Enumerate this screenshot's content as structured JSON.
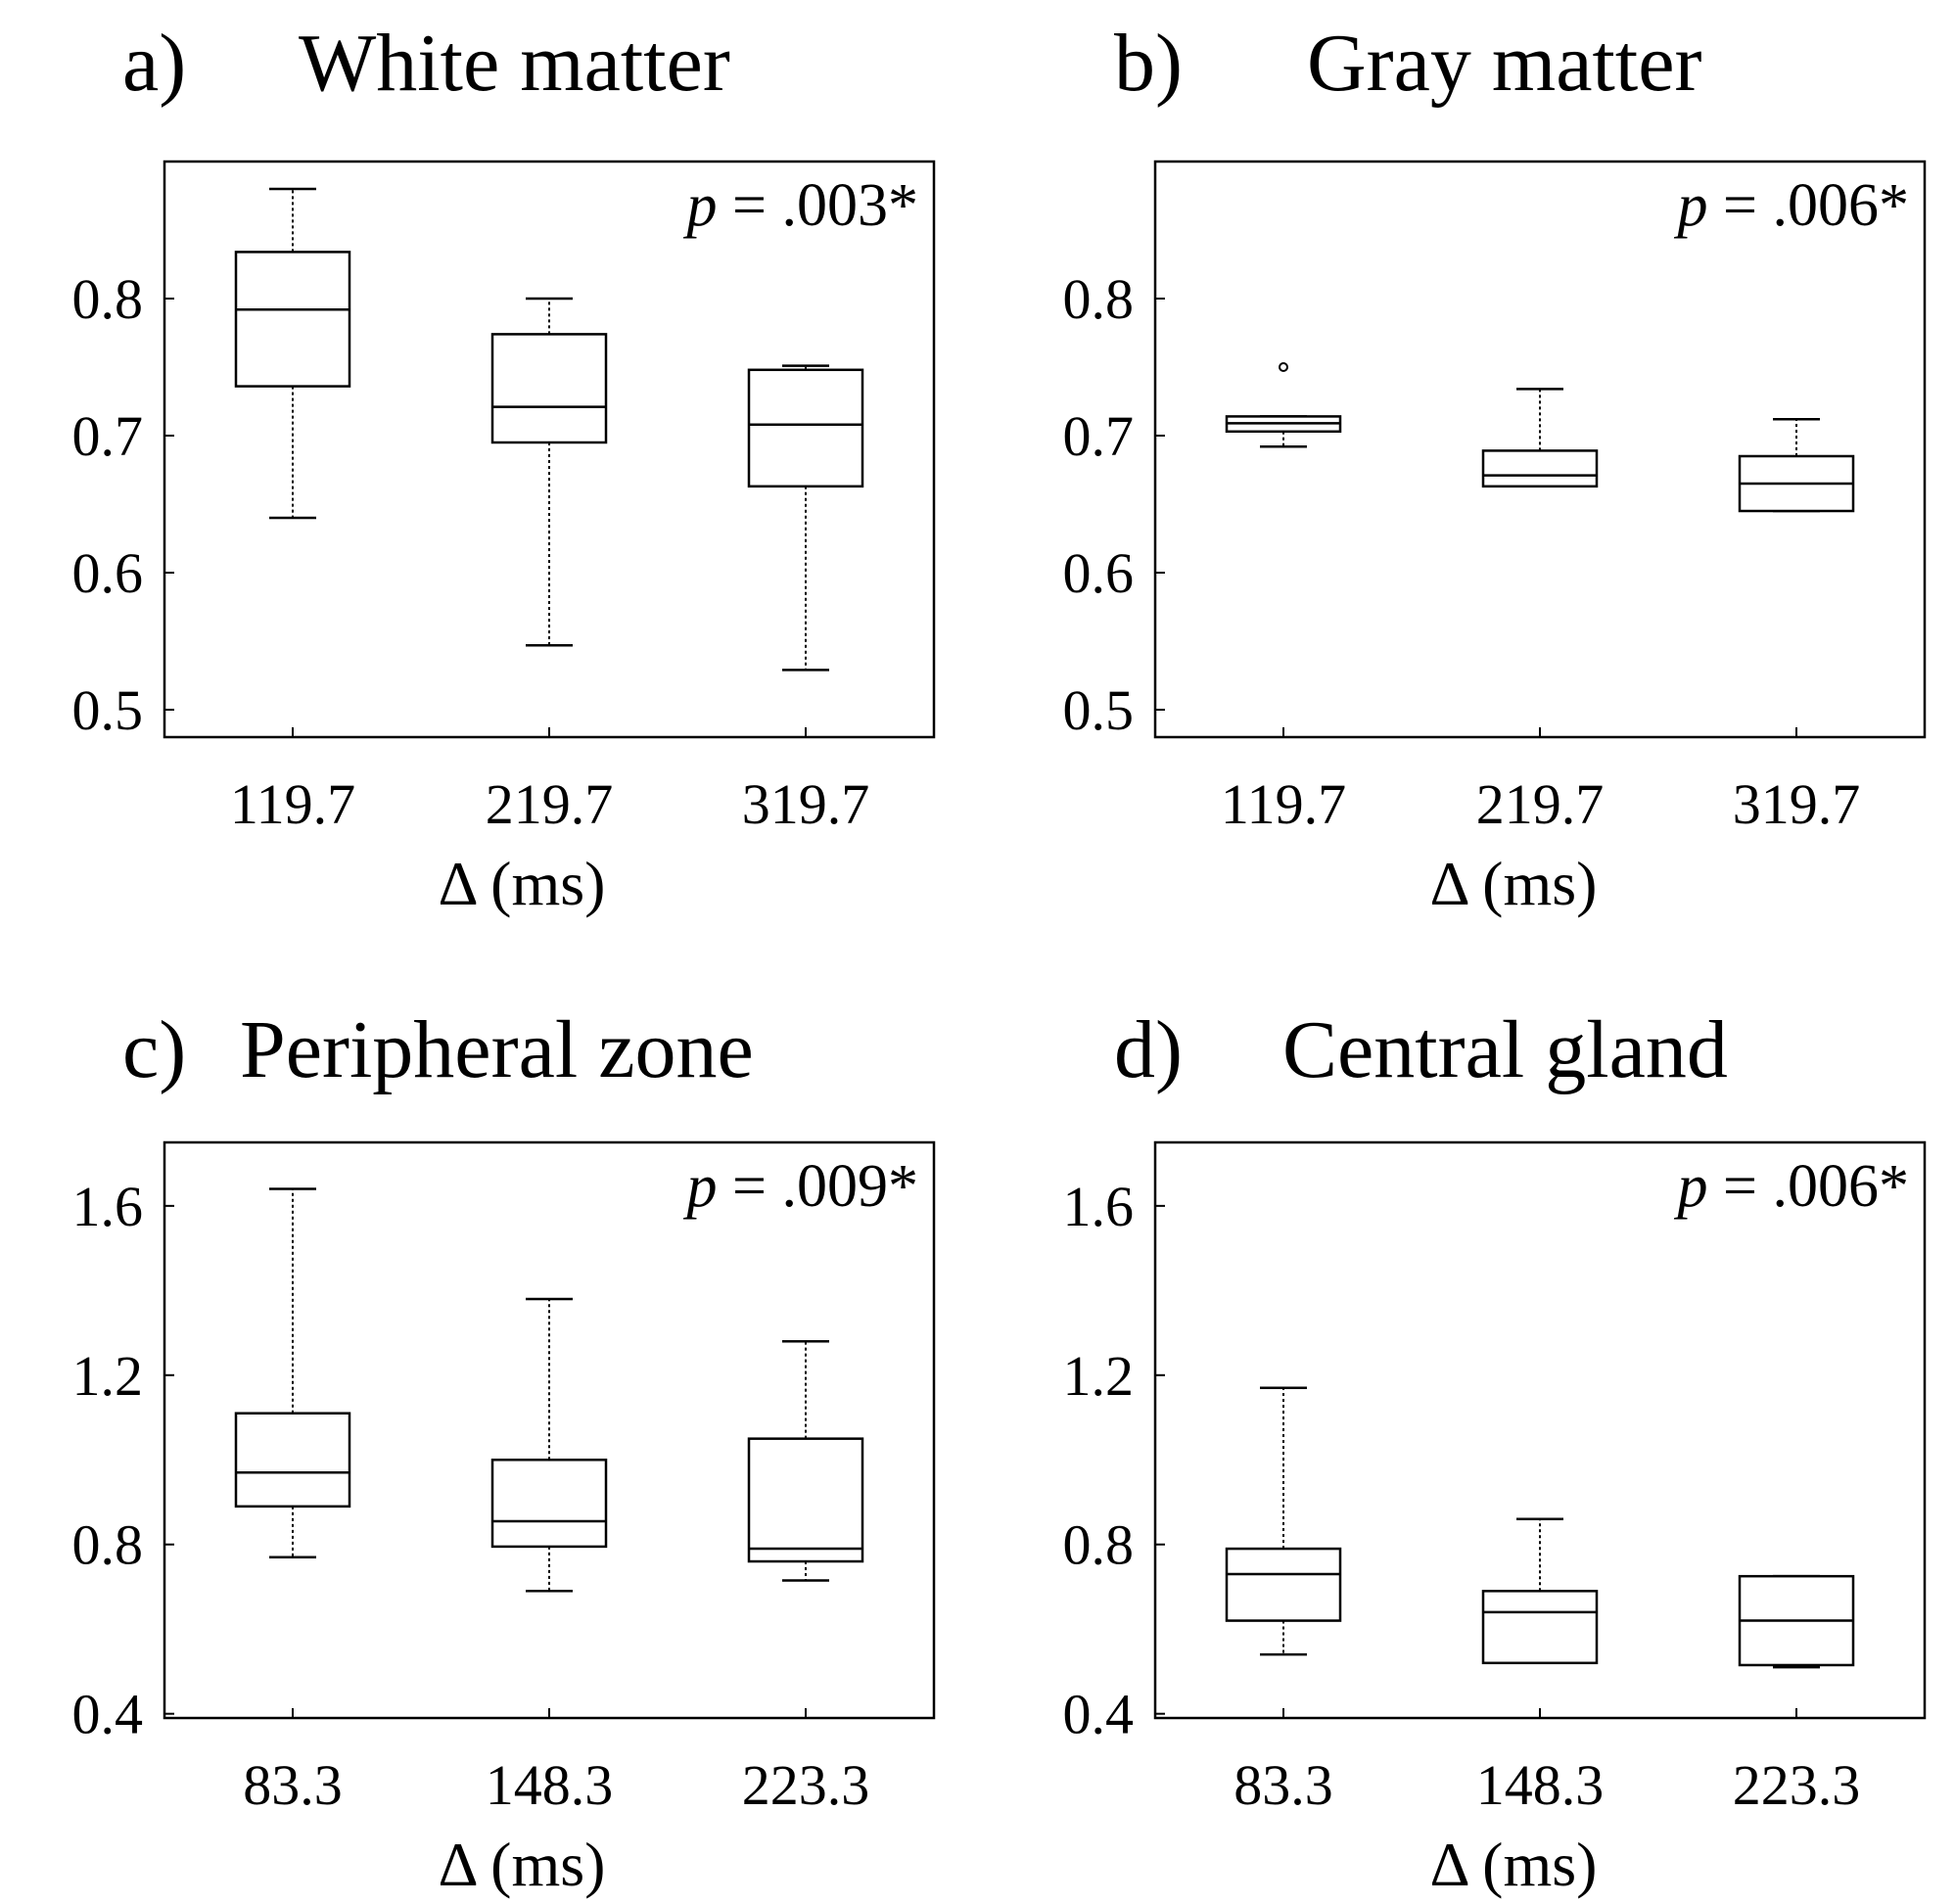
{
  "chart_data": [
    {
      "type": "boxplot",
      "panel_label": "a)",
      "title": "White matter",
      "p_symbol": "p",
      "p_value": " = .003*",
      "xlabel": "Δ (ms)",
      "ylabel": "",
      "ylim": [
        0.48,
        0.9
      ],
      "yticks": [
        "0.5",
        "0.6",
        "0.7",
        "0.8"
      ],
      "categories": [
        "119.7",
        "219.7",
        "319.7"
      ],
      "boxes": [
        {
          "whisker_low": 0.64,
          "q1": 0.736,
          "median": 0.792,
          "q3": 0.834,
          "whisker_high": 0.88,
          "outliers": []
        },
        {
          "whisker_low": 0.547,
          "q1": 0.695,
          "median": 0.721,
          "q3": 0.774,
          "whisker_high": 0.8,
          "outliers": []
        },
        {
          "whisker_low": 0.529,
          "q1": 0.663,
          "median": 0.708,
          "q3": 0.748,
          "whisker_high": 0.751,
          "outliers": []
        }
      ]
    },
    {
      "type": "boxplot",
      "panel_label": "b)",
      "title": "Gray matter",
      "p_symbol": "p",
      "p_value": " = .006*",
      "xlabel": "Δ (ms)",
      "ylabel": "",
      "ylim": [
        0.48,
        0.9
      ],
      "yticks": [
        "0.5",
        "0.6",
        "0.7",
        "0.8"
      ],
      "categories": [
        "119.7",
        "219.7",
        "319.7"
      ],
      "boxes": [
        {
          "whisker_low": 0.692,
          "q1": 0.703,
          "median": 0.709,
          "q3": 0.714,
          "whisker_high": 0.714,
          "outliers": [
            0.75
          ]
        },
        {
          "whisker_low": 0.663,
          "q1": 0.663,
          "median": 0.671,
          "q3": 0.689,
          "whisker_high": 0.734,
          "outliers": []
        },
        {
          "whisker_low": 0.645,
          "q1": 0.645,
          "median": 0.665,
          "q3": 0.685,
          "whisker_high": 0.712,
          "outliers": []
        }
      ]
    },
    {
      "type": "boxplot",
      "panel_label": "c)",
      "title": "Peripheral zone",
      "p_symbol": "p",
      "p_value": " = .009*",
      "xlabel": "Δ (ms)",
      "ylabel": "",
      "ylim": [
        0.39,
        1.75
      ],
      "yticks": [
        "0.4",
        "0.8",
        "1.2",
        "1.6"
      ],
      "categories": [
        "83.3",
        "148.3",
        "223.3"
      ],
      "boxes": [
        {
          "whisker_low": 0.77,
          "q1": 0.89,
          "median": 0.97,
          "q3": 1.11,
          "whisker_high": 1.64,
          "outliers": []
        },
        {
          "whisker_low": 0.69,
          "q1": 0.795,
          "median": 0.855,
          "q3": 1.0,
          "whisker_high": 1.38,
          "outliers": []
        },
        {
          "whisker_low": 0.715,
          "q1": 0.76,
          "median": 0.79,
          "q3": 1.05,
          "whisker_high": 1.28,
          "outliers": []
        }
      ]
    },
    {
      "type": "boxplot",
      "panel_label": "d)",
      "title": "Central gland",
      "p_symbol": "p",
      "p_value": " = .006*",
      "xlabel": "Δ (ms)",
      "ylabel": "",
      "ylim": [
        0.39,
        1.75
      ],
      "yticks": [
        "0.4",
        "0.8",
        "1.2",
        "1.6"
      ],
      "categories": [
        "83.3",
        "148.3",
        "223.3"
      ],
      "boxes": [
        {
          "whisker_low": 0.54,
          "q1": 0.62,
          "median": 0.73,
          "q3": 0.79,
          "whisker_high": 1.17,
          "outliers": []
        },
        {
          "whisker_low": 0.52,
          "q1": 0.52,
          "median": 0.64,
          "q3": 0.69,
          "whisker_high": 0.86,
          "outliers": []
        },
        {
          "whisker_low": 0.51,
          "q1": 0.515,
          "median": 0.62,
          "q3": 0.725,
          "whisker_high": 0.725,
          "outliers": []
        }
      ]
    }
  ]
}
